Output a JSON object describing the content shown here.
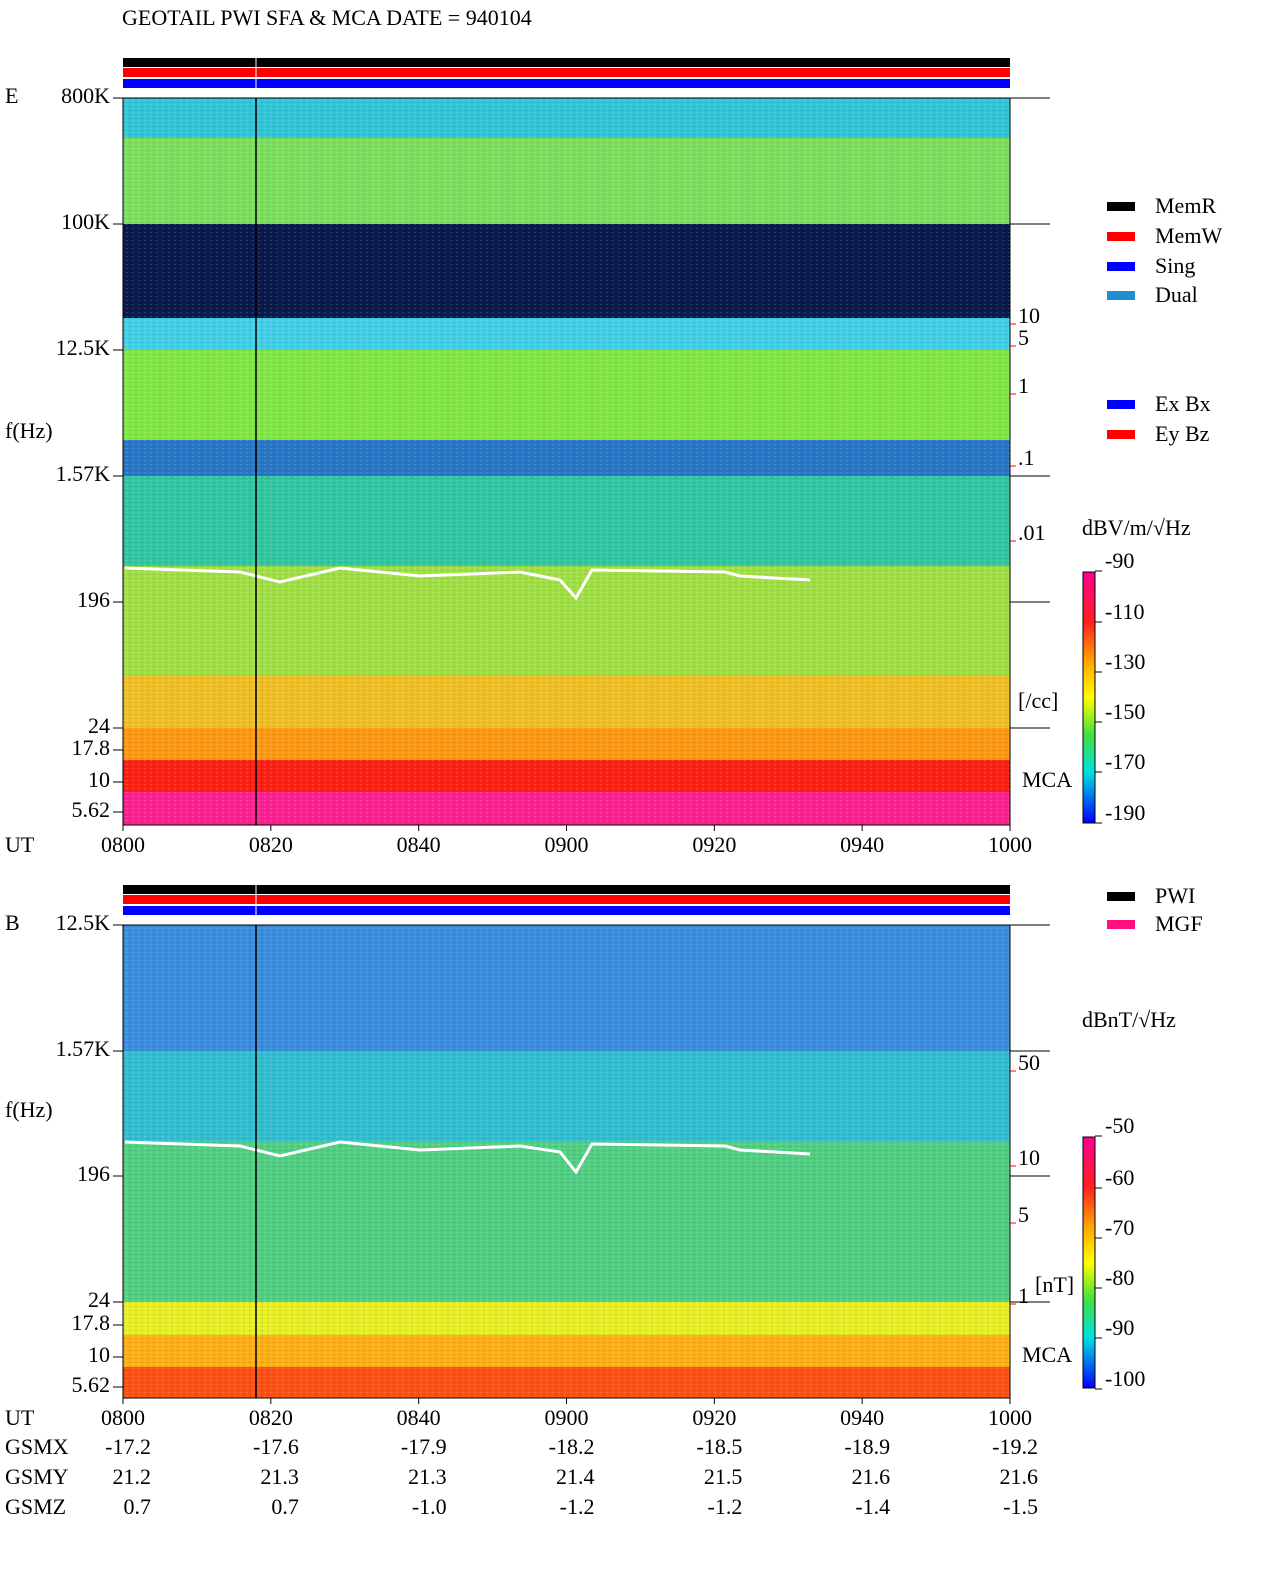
{
  "title": "GEOTAIL  PWI SFA & MCA   DATE = 940104",
  "legend_mode": [
    {
      "name": "MemR",
      "color": "#000000"
    },
    {
      "name": "MemW",
      "color": "#ff0000"
    },
    {
      "name": "Sing",
      "color": "#0000ff"
    },
    {
      "name": "Dual",
      "color": "#1e8fcf"
    }
  ],
  "legend_axis": [
    {
      "name": "Ex Bx",
      "color": "#0000ff"
    },
    {
      "name": "Ey Bz",
      "color": "#ff0000"
    }
  ],
  "legend_source": [
    {
      "name": "PWI",
      "color": "#000000"
    },
    {
      "name": "MGF",
      "color": "#ff1080"
    }
  ],
  "panels": [
    {
      "label": "E",
      "y_label": "f(Hz)",
      "time_label": "UT",
      "mca": "MCA",
      "freq_ticks": [
        "800K",
        "100K",
        "12.5K",
        "1.57K",
        "196",
        "24",
        "17.8",
        "10",
        "5.62"
      ],
      "time_ticks": [
        "0800",
        "0820",
        "0840",
        "0900",
        "0920",
        "0940",
        "1000"
      ],
      "right_ticks": [
        "10",
        "5",
        "1",
        ".1",
        ".01"
      ],
      "right_unit": "[/cc]",
      "colorbar_unit": "dBV/m/√Hz",
      "colorbar_ticks": [
        -90,
        -110,
        -130,
        -150,
        -170,
        -190
      ]
    },
    {
      "label": "B",
      "y_label": "f(Hz)",
      "time_label": "UT",
      "mca": "MCA",
      "freq_ticks": [
        "12.5K",
        "1.57K",
        "196",
        "24",
        "17.8",
        "10",
        "5.62"
      ],
      "time_ticks": [
        "0800",
        "0820",
        "0840",
        "0900",
        "0920",
        "0940",
        "1000"
      ],
      "right_ticks": [
        "50",
        "10",
        "5",
        "1"
      ],
      "right_unit": "[nT]",
      "colorbar_unit": "dBnT/√Hz",
      "colorbar_ticks": [
        -50,
        -60,
        -70,
        -80,
        -90,
        -100
      ]
    }
  ],
  "orbit": [
    {
      "label": "GSMX",
      "values": [
        -17.2,
        -17.6,
        -17.9,
        -18.2,
        -18.5,
        -18.9,
        -19.2
      ]
    },
    {
      "label": "GSMY",
      "values": [
        21.2,
        21.3,
        21.3,
        21.4,
        21.5,
        21.6,
        21.6
      ]
    },
    {
      "label": "GSMZ",
      "values": [
        {
          "value": 0.7,
          "label": "0.7"
        },
        {
          "value": 0.7,
          "label": "0.7"
        },
        {
          "value": -1.0,
          "label": "-1.0"
        },
        -1.2,
        -1.2,
        -1.4,
        -1.5
      ]
    }
  ]
}
